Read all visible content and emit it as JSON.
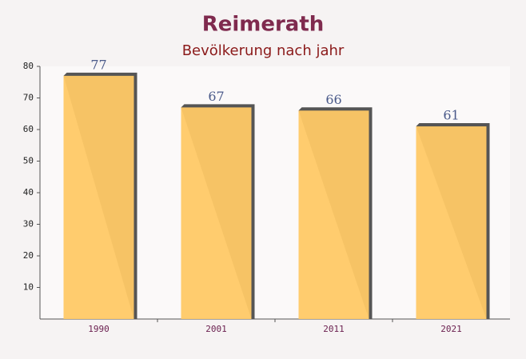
{
  "chart_data": {
    "type": "bar",
    "title": "Reimerath",
    "subtitle": "Bevölkerung nach jahr",
    "categories": [
      "1990",
      "2001",
      "2011",
      "2021"
    ],
    "values": [
      77,
      67,
      66,
      61
    ],
    "color": "#ffc966",
    "ylim": [
      0,
      80
    ],
    "yticks": [
      10,
      20,
      30,
      40,
      50,
      60,
      70,
      80
    ]
  }
}
